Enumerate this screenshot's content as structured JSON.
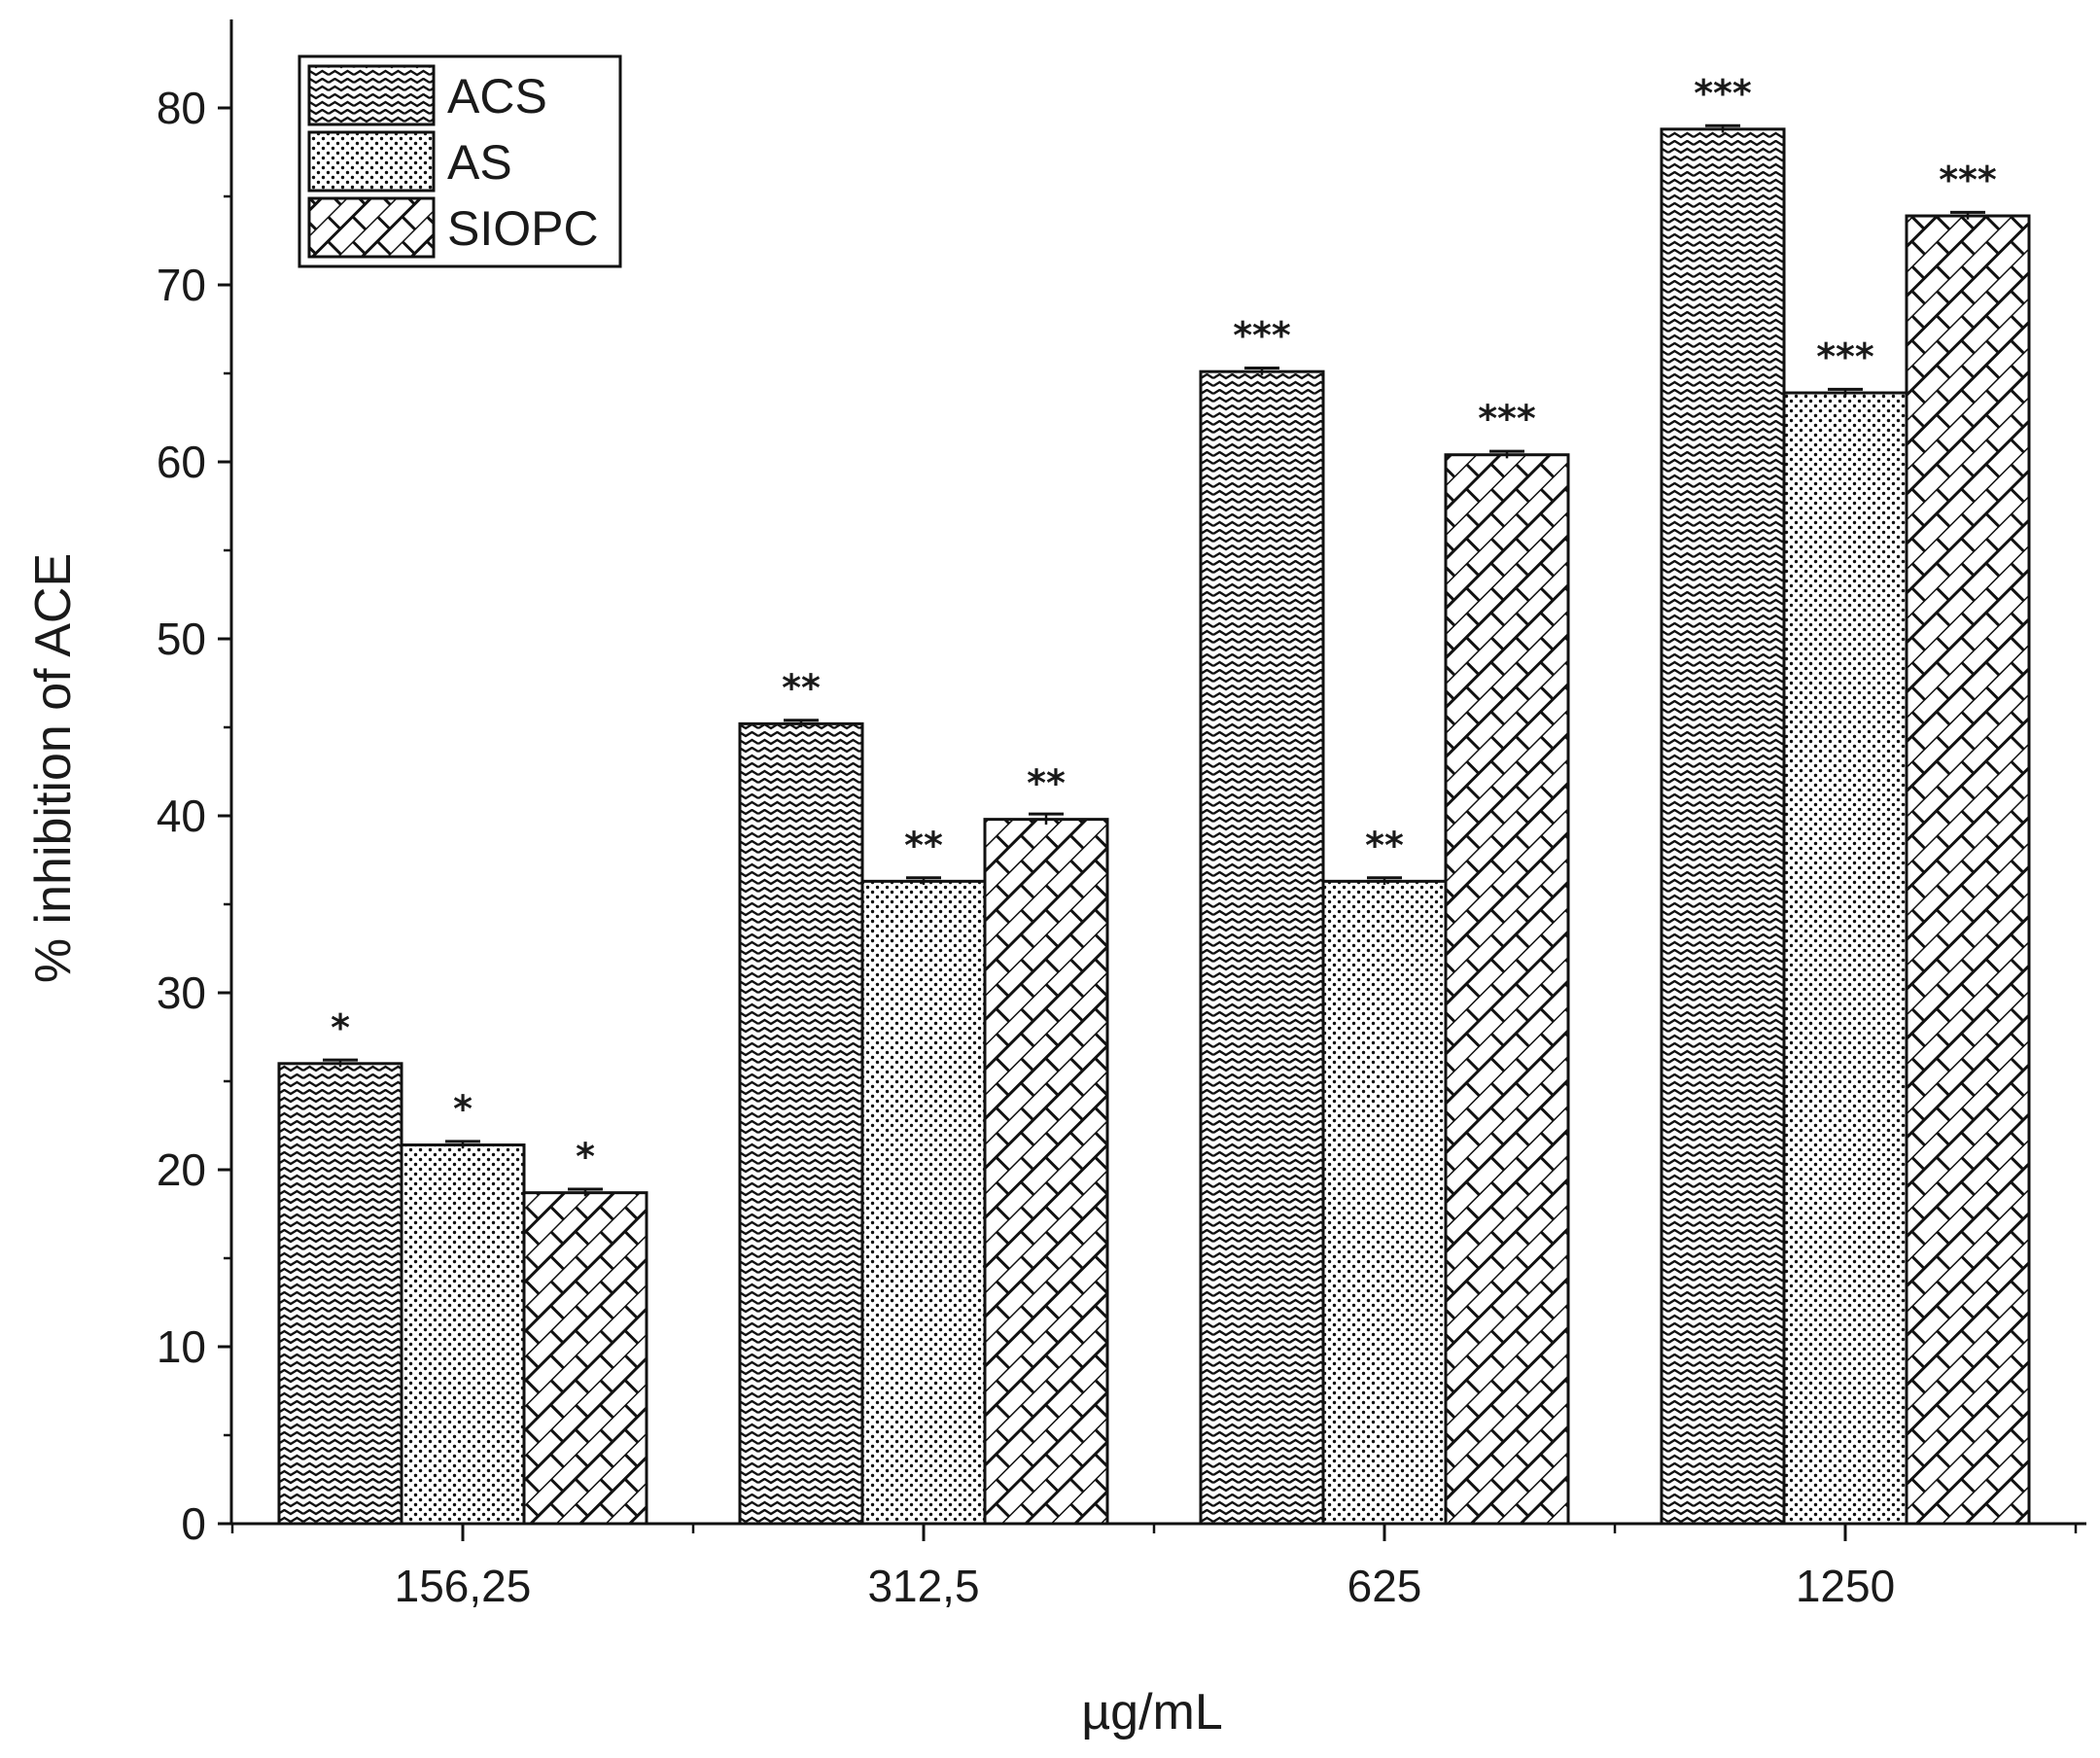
{
  "chart_data": {
    "type": "bar",
    "categories": [
      "156,25",
      "312,5",
      "625",
      "1250"
    ],
    "series": [
      {
        "name": "ACS",
        "values": [
          26,
          45.2,
          65.1,
          78.8
        ],
        "errors": [
          0.2,
          0.2,
          0.2,
          0.2
        ],
        "sig": [
          "*",
          "**",
          "***",
          "***"
        ],
        "pattern": "wave"
      },
      {
        "name": "AS",
        "values": [
          21.4,
          36.3,
          36.3,
          63.9
        ],
        "errors": [
          0.2,
          0.2,
          0.2,
          0.2
        ],
        "sig": [
          "*",
          "**",
          "**",
          "***"
        ],
        "pattern": "dots"
      },
      {
        "name": "SIOPC",
        "values": [
          18.7,
          39.8,
          60.4,
          73.9
        ],
        "errors": [
          0.2,
          0.3,
          0.2,
          0.2
        ],
        "sig": [
          "*",
          "**",
          "***",
          "***"
        ],
        "pattern": "brick"
      }
    ],
    "xlabel": "µg/mL",
    "ylabel": "% inhibition of ACE",
    "ylim": [
      0,
      85
    ],
    "yticks": [
      0,
      10,
      20,
      30,
      40,
      50,
      60,
      70,
      80
    ],
    "grid": false,
    "legend": "top-left"
  }
}
